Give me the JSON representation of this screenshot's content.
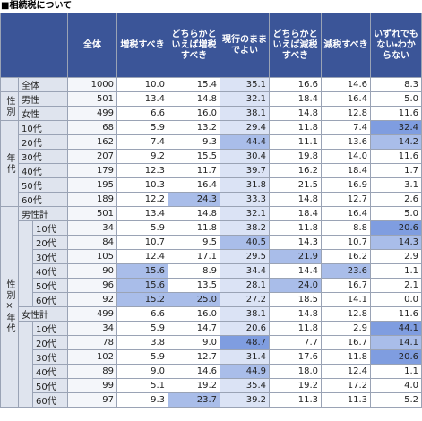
{
  "title": "■相続税について",
  "table": {
    "columns": [
      "全体",
      "増税すべき",
      "どちらかといえば増税すべき",
      "現行のままでよい",
      "どちらかといえば減税すべき",
      "減税すべき",
      "いずれでもない・わからない"
    ],
    "total": {
      "label": "全体",
      "values": [
        "1000",
        "10.0",
        "15.4",
        "35.1",
        "16.6",
        "14.6",
        "8.3"
      ]
    },
    "groups": [
      {
        "label": "性別",
        "rows": [
          {
            "label": "男性",
            "values": [
              "501",
              "13.4",
              "14.8",
              "32.1",
              "18.4",
              "16.4",
              "5.0"
            ]
          },
          {
            "label": "女性",
            "values": [
              "499",
              "6.6",
              "16.0",
              "38.1",
              "14.8",
              "12.8",
              "11.6"
            ]
          }
        ]
      },
      {
        "label": "年代",
        "rows": [
          {
            "label": "10代",
            "values": [
              "68",
              "5.9",
              "13.2",
              "29.4",
              "11.8",
              "7.4",
              "32.4"
            ]
          },
          {
            "label": "20代",
            "values": [
              "162",
              "7.4",
              "9.3",
              "44.4",
              "11.1",
              "13.6",
              "14.2"
            ]
          },
          {
            "label": "30代",
            "values": [
              "207",
              "9.2",
              "15.5",
              "30.4",
              "19.8",
              "14.0",
              "11.6"
            ]
          },
          {
            "label": "40代",
            "values": [
              "179",
              "12.3",
              "11.7",
              "39.7",
              "16.2",
              "18.4",
              "1.7"
            ]
          },
          {
            "label": "50代",
            "values": [
              "195",
              "10.3",
              "16.4",
              "31.8",
              "21.5",
              "16.9",
              "3.1"
            ]
          },
          {
            "label": "60代",
            "values": [
              "189",
              "12.2",
              "24.3",
              "33.3",
              "14.8",
              "12.7",
              "2.6"
            ]
          }
        ]
      },
      {
        "label": "性別×年代",
        "subgroups": [
          {
            "label": "男性計",
            "values": [
              "501",
              "13.4",
              "14.8",
              "32.1",
              "18.4",
              "16.4",
              "5.0"
            ],
            "rows": [
              {
                "label": "10代",
                "values": [
                  "34",
                  "5.9",
                  "11.8",
                  "38.2",
                  "11.8",
                  "8.8",
                  "20.6"
                ]
              },
              {
                "label": "20代",
                "values": [
                  "84",
                  "10.7",
                  "9.5",
                  "40.5",
                  "14.3",
                  "10.7",
                  "14.3"
                ]
              },
              {
                "label": "30代",
                "values": [
                  "105",
                  "12.4",
                  "17.1",
                  "29.5",
                  "21.9",
                  "16.2",
                  "2.9"
                ]
              },
              {
                "label": "40代",
                "values": [
                  "90",
                  "15.6",
                  "8.9",
                  "34.4",
                  "14.4",
                  "23.6",
                  "1.1"
                ]
              },
              {
                "label": "50代",
                "values": [
                  "96",
                  "15.6",
                  "13.5",
                  "28.1",
                  "24.0",
                  "16.7",
                  "2.1"
                ]
              },
              {
                "label": "60代",
                "values": [
                  "92",
                  "15.2",
                  "25.0",
                  "27.2",
                  "18.5",
                  "14.1",
                  "0.0"
                ]
              }
            ]
          },
          {
            "label": "女性計",
            "values": [
              "499",
              "6.6",
              "16.0",
              "38.1",
              "14.8",
              "12.8",
              "11.6"
            ],
            "rows": [
              {
                "label": "10代",
                "values": [
                  "34",
                  "5.9",
                  "14.7",
                  "20.6",
                  "11.8",
                  "2.9",
                  "44.1"
                ]
              },
              {
                "label": "20代",
                "values": [
                  "78",
                  "3.8",
                  "9.0",
                  "48.7",
                  "7.7",
                  "16.7",
                  "14.1"
                ]
              },
              {
                "label": "30代",
                "values": [
                  "102",
                  "5.9",
                  "12.7",
                  "31.4",
                  "17.6",
                  "11.8",
                  "20.6"
                ]
              },
              {
                "label": "40代",
                "values": [
                  "89",
                  "9.0",
                  "14.6",
                  "44.9",
                  "18.0",
                  "12.4",
                  "1.1"
                ]
              },
              {
                "label": "50代",
                "values": [
                  "99",
                  "5.1",
                  "19.2",
                  "35.4",
                  "19.2",
                  "17.2",
                  "4.0"
                ]
              },
              {
                "label": "60代",
                "values": [
                  "97",
                  "9.3",
                  "23.7",
                  "39.2",
                  "11.3",
                  "11.3",
                  "5.2"
                ]
              }
            ]
          }
        ]
      }
    ]
  }
}
